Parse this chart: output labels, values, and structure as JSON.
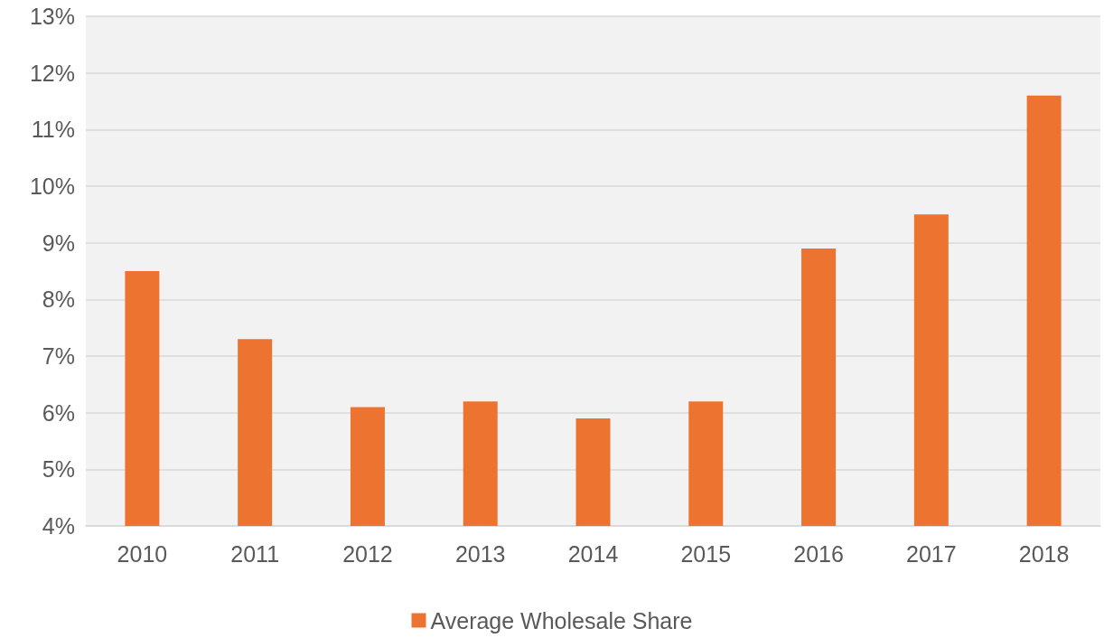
{
  "chart_data": {
    "type": "bar",
    "categories": [
      "2010",
      "2011",
      "2012",
      "2013",
      "2014",
      "2015",
      "2016",
      "2017",
      "2018"
    ],
    "series": [
      {
        "name": "Average Wholesale Share",
        "color": "#ed7430",
        "values": [
          8.5,
          7.3,
          6.1,
          6.2,
          5.9,
          6.2,
          8.9,
          9.5,
          11.6
        ]
      }
    ],
    "ylim": [
      4,
      13
    ],
    "yticks": [
      {
        "value": 4,
        "label": "4%"
      },
      {
        "value": 5,
        "label": "5%"
      },
      {
        "value": 6,
        "label": "6%"
      },
      {
        "value": 7,
        "label": "7%"
      },
      {
        "value": 8,
        "label": "8%"
      },
      {
        "value": 9,
        "label": "9%"
      },
      {
        "value": 10,
        "label": "10%"
      },
      {
        "value": 11,
        "label": "11%"
      },
      {
        "value": 12,
        "label": "12%"
      },
      {
        "value": 13,
        "label": "13%"
      }
    ],
    "grid": "y",
    "legend": "bottom"
  }
}
